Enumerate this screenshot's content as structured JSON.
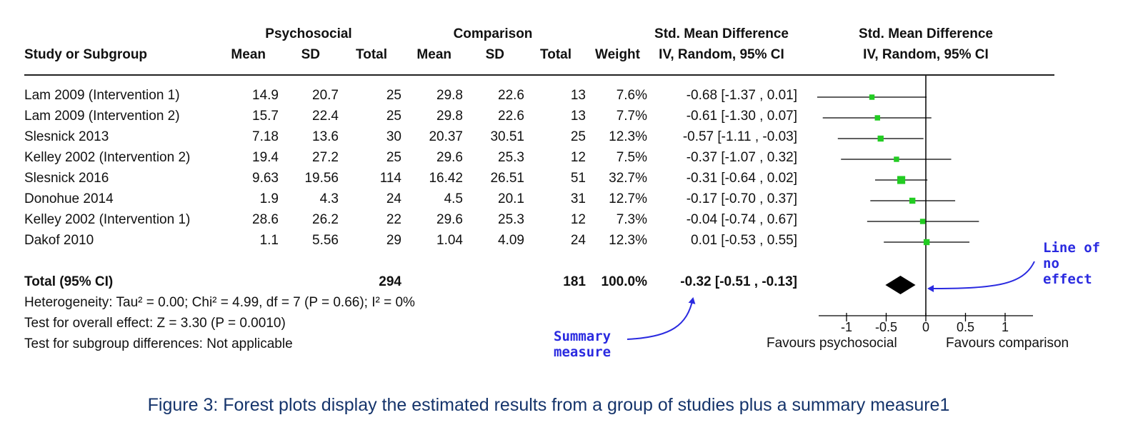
{
  "chart_data": {
    "type": "forest",
    "group_headers": {
      "experimental": "Psychosocial",
      "control": "Comparison",
      "effect": "Std. Mean Difference",
      "plot": "Std. Mean Difference"
    },
    "columns": {
      "study": "Study or Subgroup",
      "mean_e": "Mean",
      "sd_e": "SD",
      "total_e": "Total",
      "mean_c": "Mean",
      "sd_c": "SD",
      "total_c": "Total",
      "weight": "Weight",
      "effect": "IV, Random, 95% CI",
      "plot": "IV, Random, 95% CI"
    },
    "studies": [
      {
        "name": "Lam 2009 (Intervention 1)",
        "mean_e": "14.9",
        "sd_e": "20.7",
        "total_e": "25",
        "mean_c": "29.8",
        "sd_c": "22.6",
        "total_c": "13",
        "weight": "7.6%",
        "ci_text": "-0.68 [-1.37 , 0.01]",
        "smd": -0.68,
        "lower": -1.37,
        "upper": 0.01,
        "w": 7.6
      },
      {
        "name": "Lam 2009 (Intervention 2)",
        "mean_e": "15.7",
        "sd_e": "22.4",
        "total_e": "25",
        "mean_c": "29.8",
        "sd_c": "22.6",
        "total_c": "13",
        "weight": "7.7%",
        "ci_text": "-0.61 [-1.30 , 0.07]",
        "smd": -0.61,
        "lower": -1.3,
        "upper": 0.07,
        "w": 7.7
      },
      {
        "name": "Slesnick 2013",
        "mean_e": "7.18",
        "sd_e": "13.6",
        "total_e": "30",
        "mean_c": "20.37",
        "sd_c": "30.51",
        "total_c": "25",
        "weight": "12.3%",
        "ci_text": "-0.57 [-1.11 , -0.03]",
        "smd": -0.57,
        "lower": -1.11,
        "upper": -0.03,
        "w": 12.3
      },
      {
        "name": "Kelley 2002 (Intervention 2)",
        "mean_e": "19.4",
        "sd_e": "27.2",
        "total_e": "25",
        "mean_c": "29.6",
        "sd_c": "25.3",
        "total_c": "12",
        "weight": "7.5%",
        "ci_text": "-0.37 [-1.07 , 0.32]",
        "smd": -0.37,
        "lower": -1.07,
        "upper": 0.32,
        "w": 7.5
      },
      {
        "name": "Slesnick 2016",
        "mean_e": "9.63",
        "sd_e": "19.56",
        "total_e": "114",
        "mean_c": "16.42",
        "sd_c": "26.51",
        "total_c": "51",
        "weight": "32.7%",
        "ci_text": "-0.31 [-0.64 , 0.02]",
        "smd": -0.31,
        "lower": -0.64,
        "upper": 0.02,
        "w": 32.7
      },
      {
        "name": "Donohue 2014",
        "mean_e": "1.9",
        "sd_e": "4.3",
        "total_e": "24",
        "mean_c": "4.5",
        "sd_c": "20.1",
        "total_c": "31",
        "weight": "12.7%",
        "ci_text": "-0.17 [-0.70 , 0.37]",
        "smd": -0.17,
        "lower": -0.7,
        "upper": 0.37,
        "w": 12.7
      },
      {
        "name": "Kelley 2002 (Intervention 1)",
        "mean_e": "28.6",
        "sd_e": "26.2",
        "total_e": "22",
        "mean_c": "29.6",
        "sd_c": "25.3",
        "total_c": "12",
        "weight": "7.3%",
        "ci_text": "-0.04 [-0.74 , 0.67]",
        "smd": -0.04,
        "lower": -0.74,
        "upper": 0.67,
        "w": 7.3
      },
      {
        "name": "Dakof 2010",
        "mean_e": "1.1",
        "sd_e": "5.56",
        "total_e": "29",
        "mean_c": "1.04",
        "sd_c": "4.09",
        "total_c": "24",
        "weight": "12.3%",
        "ci_text": "0.01 [-0.53 , 0.55]",
        "smd": 0.01,
        "lower": -0.53,
        "upper": 0.55,
        "w": 12.3
      }
    ],
    "total": {
      "label": "Total (95% CI)",
      "total_e": "294",
      "total_c": "181",
      "weight": "100.0%",
      "ci_text": "-0.32 [-0.51 , -0.13]",
      "smd": -0.32,
      "lower": -0.51,
      "upper": -0.13
    },
    "stats": {
      "heterogeneity": "Heterogeneity: Tau² = 0.00; Chi² = 4.99, df = 7 (P = 0.66); I² = 0%",
      "overall": "Test for overall effect: Z = 3.30 (P = 0.0010)",
      "subgroup": "Test for subgroup differences: Not applicable"
    },
    "x_axis": {
      "ticks": [
        -1,
        -0.5,
        0,
        0.5,
        1
      ],
      "tick_labels": [
        "-1",
        "-0.5",
        "0",
        "0.5",
        "1"
      ],
      "xlim": [
        -1.37,
        1.37
      ],
      "left_label": "Favours psychosocial",
      "right_label": "Favours comparison"
    },
    "colors": {
      "marker": "#22cc22",
      "diamond": "#000000",
      "line": "#000000",
      "annotation": "#2a2ae0"
    }
  },
  "annotations": {
    "summary_measure": "Summary\nmeasure",
    "line_of_no_effect": "Line of\nno\neffect"
  },
  "caption": "Figure 3: Forest plots display the estimated results from a group of studies plus a summary measure1"
}
